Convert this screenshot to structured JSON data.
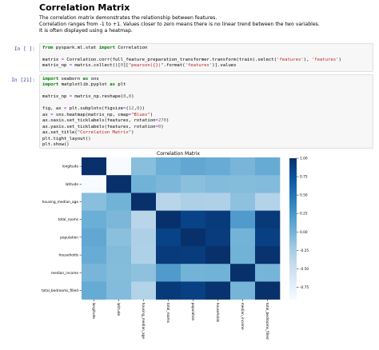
{
  "markdown": {
    "title": "Correlation Matrix",
    "lines": [
      "The correlation matrix demonstrates the relationship between features.",
      "Correlation ranges from -1 to +1. Values closer to zero means there is no linear trend between the two variables.",
      "It is often displayed using a heatmap."
    ]
  },
  "cells": [
    {
      "prompt": "In [ ]:",
      "code": [
        "from pyspark.ml.stat import Correlation",
        "",
        "matrix = Correlation.corr(full_feature_preparation_transformer.transform(train).select('features'), 'features')",
        "matrix_np = matrix.collect()[0][\"pearson({})\".format('features')].values"
      ]
    },
    {
      "prompt": "In [21]:",
      "code": [
        "import seaborn as sns",
        "import matplotlib.pyplot as plt",
        "",
        "matrix_np = matrix_np.reshape(8,8)",
        "",
        "fig, ax = plt.subplots(figsize=(12,8))",
        "ax = sns.heatmap(matrix_np, cmap=\"Blues\")",
        "ax.xaxis.set_ticklabels(features, rotation=270)",
        "ax.yaxis.set_ticklabels(features, rotation=0)",
        "ax.set_title(\"Correlation Matrix\")",
        "plt.tight_layout()",
        "plt.show()"
      ]
    }
  ],
  "chart_data": {
    "type": "heatmap",
    "title": "Correlation Matrix",
    "cmap": "Blues",
    "x_labels": [
      "longitude",
      "latitude",
      "housing_median_age",
      "total_rooms",
      "population",
      "households",
      "median_income",
      "total_bedrooms_filled"
    ],
    "y_labels": [
      "longitude",
      "latitude",
      "housing_median_age",
      "total_rooms",
      "population",
      "households",
      "median_income",
      "total_bedrooms_filled"
    ],
    "values": [
      [
        1.0,
        -0.92,
        -0.1,
        0.04,
        0.1,
        0.06,
        -0.02,
        0.07
      ],
      [
        -0.92,
        1.0,
        0.01,
        -0.04,
        -0.11,
        -0.07,
        -0.08,
        -0.07
      ],
      [
        -0.1,
        0.01,
        1.0,
        -0.36,
        -0.29,
        -0.3,
        -0.12,
        -0.32
      ],
      [
        0.04,
        -0.04,
        -0.36,
        1.0,
        0.86,
        0.92,
        0.2,
        0.93
      ],
      [
        0.1,
        -0.11,
        -0.29,
        0.86,
        1.0,
        0.91,
        0.0,
        0.88
      ],
      [
        0.06,
        -0.07,
        -0.3,
        0.92,
        0.91,
        1.0,
        0.01,
        0.98
      ],
      [
        -0.02,
        -0.08,
        -0.12,
        0.2,
        0.0,
        0.01,
        1.0,
        -0.01
      ],
      [
        0.07,
        -0.07,
        -0.32,
        0.93,
        0.88,
        0.98,
        -0.01,
        1.0
      ]
    ],
    "colorbar": {
      "min": -0.92,
      "max": 1.0,
      "ticks": [
        1.0,
        0.75,
        0.5,
        0.25,
        0.0,
        -0.25,
        -0.5,
        -0.75
      ],
      "tick_labels": [
        "1.00",
        "0.75",
        "0.50",
        "0.25",
        "0.00",
        "-0.25",
        "-0.50",
        "-0.75"
      ],
      "low_color": "#f7fbff",
      "high_color": "#08306b"
    }
  }
}
